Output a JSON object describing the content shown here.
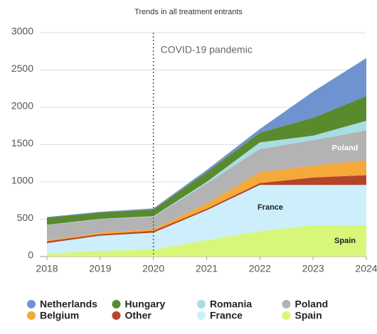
{
  "chart_data": {
    "type": "stacked-area",
    "title": "Trends in all treatment entrants",
    "x": [
      2018,
      2019,
      2020,
      2021,
      2022,
      2023,
      2024
    ],
    "xlim": [
      2018,
      2024
    ],
    "xticks": [
      2018,
      2019,
      2020,
      2021,
      2022,
      2023,
      2024
    ],
    "ylim": [
      0,
      3000
    ],
    "yticks": [
      0,
      500,
      1000,
      1500,
      2000,
      2500,
      3000
    ],
    "grid": true,
    "legend": "bottom",
    "annotations": [
      {
        "text": "COVID-19 pandemic",
        "x": 2020
      }
    ],
    "series": [
      {
        "name": "Spain",
        "color": "#d6f77a",
        "values": [
          40,
          75,
          95,
          220,
          340,
          420,
          420
        ]
      },
      {
        "name": "France",
        "color": "#cdeefb",
        "values": [
          140,
          205,
          225,
          400,
          620,
          540,
          540
        ]
      },
      {
        "name": "Other",
        "color": "#b5452a",
        "values": [
          25,
          20,
          25,
          20,
          25,
          100,
          130
        ]
      },
      {
        "name": "Belgium",
        "color": "#f5a93a",
        "values": [
          10,
          20,
          25,
          70,
          145,
          160,
          200
        ]
      },
      {
        "name": "Poland",
        "color": "#b3b3b3",
        "values": [
          205,
          180,
          160,
          270,
          310,
          340,
          400
        ]
      },
      {
        "name": "Romania",
        "color": "#a8dde3",
        "values": [
          5,
          5,
          10,
          20,
          90,
          60,
          130
        ]
      },
      {
        "name": "Hungary",
        "color": "#5a8a2e",
        "values": [
          95,
          85,
          90,
          130,
          130,
          240,
          330
        ]
      },
      {
        "name": "Netherlands",
        "color": "#6f93cf",
        "values": [
          10,
          10,
          15,
          30,
          50,
          350,
          510
        ]
      }
    ]
  }
}
